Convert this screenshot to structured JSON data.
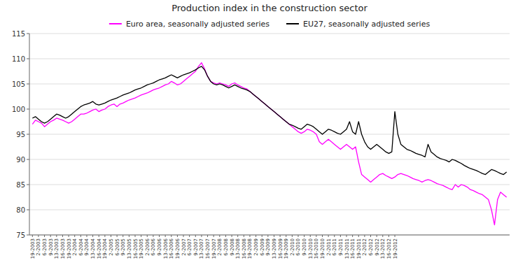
{
  "chart_data": {
    "type": "line",
    "title": "Production index in the construction sector",
    "categories": [
      "19-2003",
      null,
      "2-2003",
      null,
      "6-2003",
      null,
      "9-2003",
      null,
      "13-2003",
      null,
      "16-2003",
      null,
      "19-2003",
      null,
      "2-2004",
      null,
      "6-2004",
      null,
      "9-2004",
      null,
      "13-2004",
      null,
      "16-2004",
      null,
      "19-2004",
      null,
      "2-2005",
      null,
      "6-2005",
      null,
      "9-2005",
      null,
      "13-2005",
      null,
      "16-2005",
      null,
      "19-2005",
      null,
      "2-2006",
      null,
      "6-2006",
      null,
      "9-2006",
      null,
      "13-2006",
      null,
      "16-2006",
      null,
      "19-2006",
      null,
      "2-2007",
      null,
      "6-2007",
      null,
      "9-2007",
      null,
      "13-2007",
      null,
      "16-2007",
      null,
      "19-2007",
      null,
      "2-2008",
      null,
      "6-2008",
      null,
      "9-2008",
      null,
      "13-2008",
      null,
      "16-2008",
      null,
      "19-2008",
      null,
      "2-2009",
      null,
      "6-2009",
      null,
      "9-2009",
      null,
      "13-2009",
      null,
      "16-2009",
      null,
      "19-2009",
      null,
      "2-2010",
      null,
      "6-2010",
      null,
      "9-2010",
      null,
      "13-2010",
      null,
      "16-2010",
      null,
      "19-2010",
      null,
      "2-2011",
      null,
      "6-2011",
      null,
      "9-2011",
      null,
      "13-2011",
      null,
      "16-2011",
      null,
      "19-2011",
      null,
      "2-2012",
      null,
      "6-2012",
      null,
      "9-2012",
      null,
      "13-2012",
      null,
      "16-2012",
      null,
      "19-2012",
      null,
      null,
      null,
      null,
      null,
      null,
      null,
      null,
      null,
      null,
      null,
      null,
      null,
      null,
      null,
      null,
      null,
      null,
      null,
      null,
      null,
      null,
      null,
      null,
      null,
      null,
      null,
      null,
      null,
      null,
      null,
      null,
      null,
      null,
      null,
      null,
      null
    ],
    "series": [
      {
        "name": "Euro area, seasonally adjusted series",
        "color": "#ff00ff",
        "values": [
          97.0,
          97.8,
          97.5,
          97.2,
          96.5,
          97.0,
          97.5,
          97.8,
          98.2,
          98.0,
          97.8,
          97.5,
          97.2,
          97.5,
          98.0,
          98.5,
          99.0,
          99.0,
          99.2,
          99.5,
          99.8,
          100.0,
          99.5,
          99.8,
          100.0,
          100.5,
          100.8,
          101.0,
          100.5,
          101.0,
          101.2,
          101.5,
          101.8,
          102.0,
          102.2,
          102.5,
          102.8,
          103.0,
          103.2,
          103.5,
          103.8,
          104.0,
          104.2,
          104.5,
          104.8,
          105.0,
          105.5,
          105.2,
          104.8,
          105.0,
          105.5,
          106.0,
          106.5,
          107.0,
          107.5,
          108.5,
          109.2,
          108.0,
          106.5,
          105.5,
          105.2,
          105.0,
          105.2,
          105.0,
          104.8,
          104.5,
          105.0,
          105.2,
          104.8,
          104.5,
          104.2,
          104.0,
          103.5,
          103.0,
          102.5,
          102.0,
          101.5,
          101.0,
          100.5,
          100.0,
          99.5,
          99.0,
          98.5,
          98.0,
          97.5,
          97.0,
          96.5,
          96.0,
          95.5,
          95.2,
          95.5,
          96.0,
          95.8,
          95.5,
          95.0,
          93.5,
          93.0,
          93.5,
          94.0,
          93.5,
          93.0,
          92.5,
          92.0,
          92.5,
          93.0,
          92.5,
          92.0,
          92.5,
          89.5,
          87.0,
          86.5,
          86.0,
          85.5,
          86.0,
          86.5,
          87.0,
          87.2,
          86.8,
          86.5,
          86.2,
          86.5,
          87.0,
          87.2,
          87.0,
          86.8,
          86.5,
          86.2,
          86.0,
          85.8,
          85.5,
          85.8,
          86.0,
          85.8,
          85.5,
          85.2,
          85.0,
          84.8,
          84.5,
          84.2,
          84.0,
          85.0,
          84.5,
          85.0,
          84.8,
          84.5,
          84.0,
          83.8,
          83.5,
          83.2,
          83.0,
          82.5,
          82.0,
          80.0,
          77.0,
          82.0,
          83.5,
          83.0,
          82.5
        ]
      },
      {
        "name": "EU27, seasonally adjusted series",
        "color": "#000000",
        "values": [
          98.2,
          98.5,
          98.0,
          97.5,
          97.2,
          97.5,
          98.0,
          98.5,
          99.0,
          98.8,
          98.5,
          98.2,
          98.5,
          99.0,
          99.5,
          100.0,
          100.5,
          100.8,
          101.0,
          101.2,
          101.5,
          101.0,
          100.8,
          101.0,
          101.2,
          101.5,
          101.8,
          102.0,
          102.2,
          102.5,
          102.8,
          103.0,
          103.2,
          103.5,
          103.8,
          104.0,
          104.2,
          104.5,
          104.8,
          105.0,
          105.2,
          105.5,
          105.8,
          106.0,
          106.2,
          106.5,
          106.8,
          106.5,
          106.2,
          106.5,
          106.8,
          107.0,
          107.2,
          107.5,
          107.8,
          108.2,
          108.5,
          107.8,
          106.5,
          105.5,
          105.0,
          104.8,
          105.0,
          104.8,
          104.5,
          104.2,
          104.5,
          104.8,
          104.5,
          104.2,
          104.0,
          103.8,
          103.5,
          103.0,
          102.5,
          102.0,
          101.5,
          101.0,
          100.5,
          100.0,
          99.5,
          99.0,
          98.5,
          98.0,
          97.5,
          97.0,
          96.8,
          96.5,
          96.2,
          96.0,
          96.5,
          97.0,
          96.8,
          96.5,
          96.0,
          95.5,
          95.0,
          95.5,
          96.0,
          95.8,
          95.5,
          95.2,
          95.0,
          95.5,
          96.0,
          97.5,
          95.5,
          95.0,
          97.5,
          95.0,
          93.5,
          92.5,
          92.0,
          92.5,
          93.0,
          92.5,
          92.0,
          91.5,
          91.2,
          91.5,
          99.5,
          95.0,
          93.0,
          92.5,
          92.0,
          91.8,
          91.5,
          91.2,
          91.0,
          90.8,
          90.5,
          93.0,
          91.5,
          91.0,
          90.5,
          90.2,
          90.0,
          89.8,
          89.5,
          90.0,
          89.8,
          89.5,
          89.2,
          88.8,
          88.5,
          88.2,
          88.0,
          87.8,
          87.5,
          87.2,
          87.0,
          87.5,
          88.0,
          87.8,
          87.5,
          87.2,
          87.0,
          87.5
        ]
      }
    ],
    "ylim": [
      75,
      115
    ],
    "yticks": [
      75,
      80,
      85,
      90,
      95,
      100,
      105,
      110,
      115
    ],
    "grid": true,
    "legend": "top"
  }
}
